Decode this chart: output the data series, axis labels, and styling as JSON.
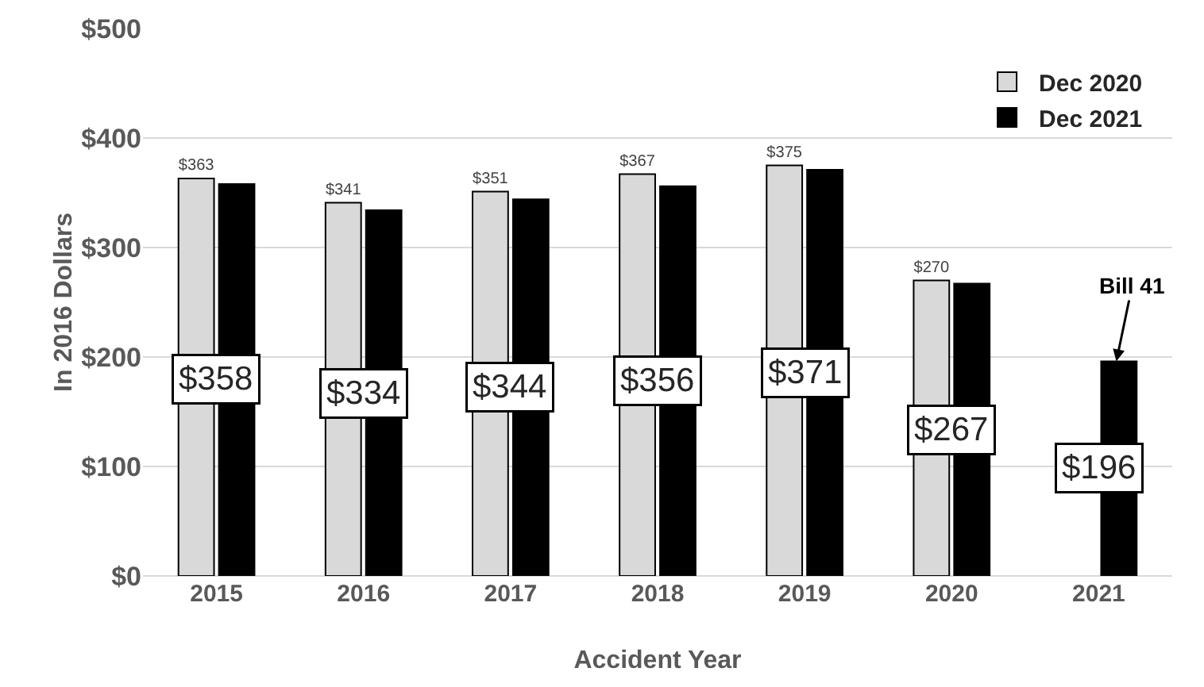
{
  "chart_data": {
    "type": "bar",
    "xlabel": "Accident Year",
    "ylabel": "In 2016 Dollars",
    "categories": [
      "2015",
      "2016",
      "2017",
      "2018",
      "2019",
      "2020",
      "2021"
    ],
    "series": [
      {
        "name": "Dec 2020",
        "color": "#d9d9d9",
        "values": [
          363,
          341,
          351,
          367,
          375,
          270,
          null
        ],
        "value_labels": [
          "$363",
          "$341",
          "$351",
          "$367",
          "$375",
          "$270",
          null
        ]
      },
      {
        "name": "Dec 2021",
        "color": "#000000",
        "values": [
          358,
          334,
          344,
          356,
          371,
          267,
          196
        ],
        "value_labels": [
          "$358",
          "$334",
          "$344",
          "$356",
          "$371",
          "$267",
          "$196"
        ]
      }
    ],
    "ylim": [
      0,
      500
    ],
    "yticks": [
      {
        "value": 0,
        "label": "$0"
      },
      {
        "value": 100,
        "label": "$100"
      },
      {
        "value": 200,
        "label": "$200"
      },
      {
        "value": 300,
        "label": "$300"
      },
      {
        "value": 400,
        "label": "$400"
      },
      {
        "value": 500,
        "label": "$500"
      }
    ],
    "grid": "y",
    "legend": "top right",
    "annotations": [
      {
        "text": "Bill 41",
        "x": "2021",
        "y": 196
      }
    ]
  }
}
